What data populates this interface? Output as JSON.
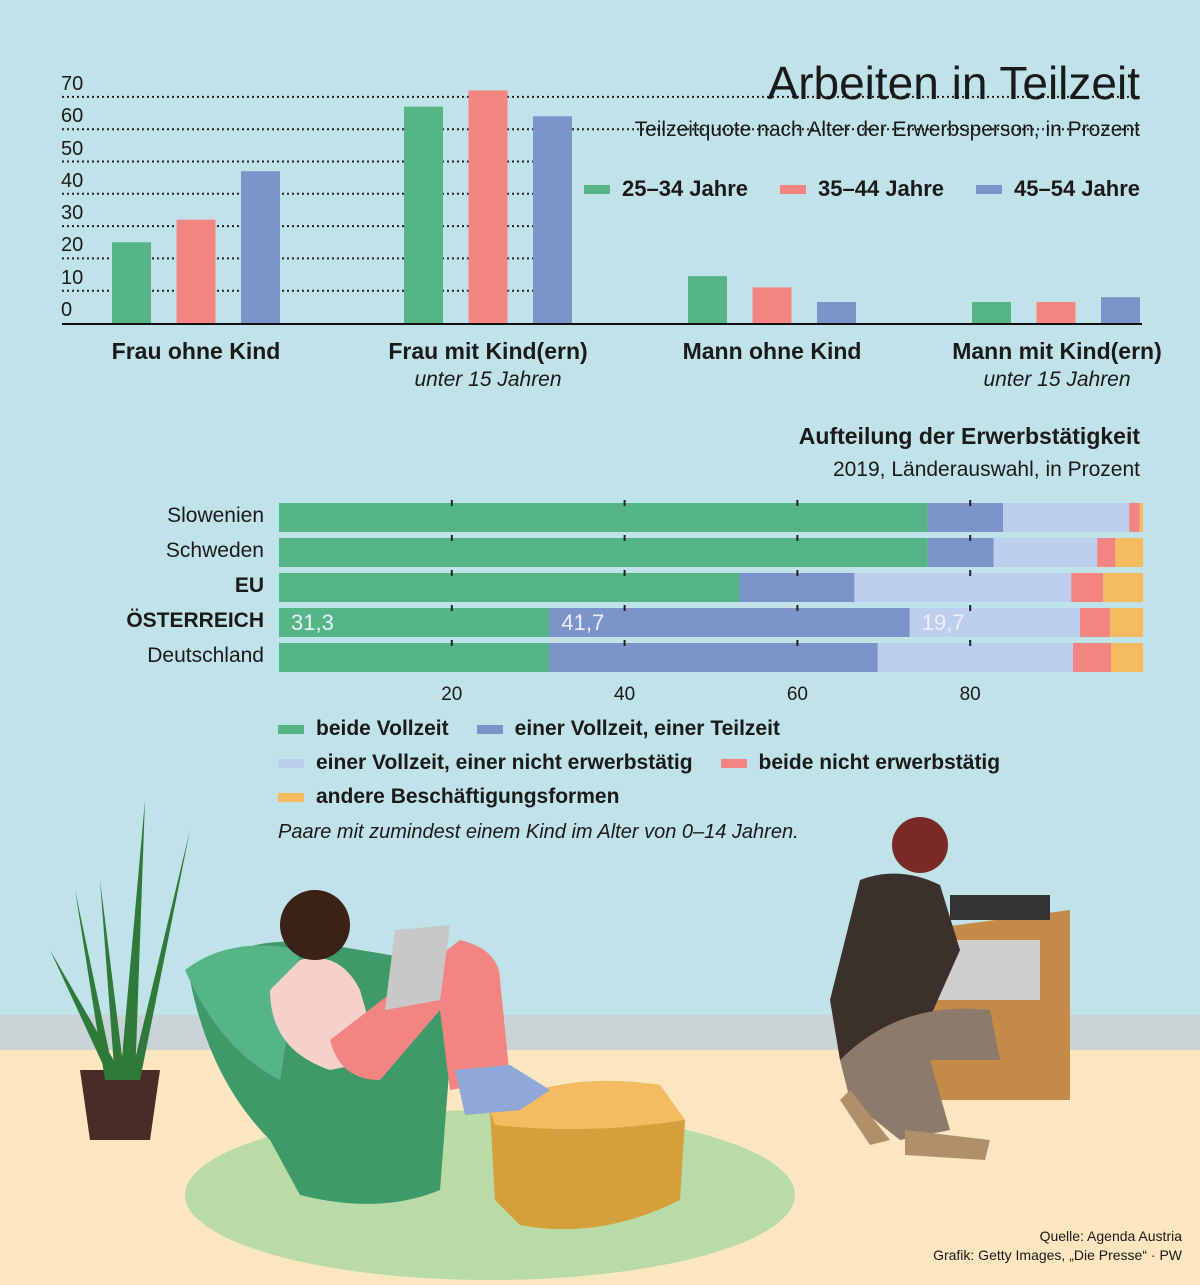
{
  "colors": {
    "green": "#55b586",
    "red": "#f28582",
    "blue": "#7b95cb",
    "lightblue": "#bccfec",
    "orange": "#f4bb60",
    "background": "#bfe3e8"
  },
  "chart_data": [
    {
      "type": "bar",
      "title": "Arbeiten in Teilzeit",
      "subtitle": "Teilzeitquote nach Alter der Erwerbsperson, in Prozent",
      "categories": [
        "Frau ohne Kind",
        "Frau mit Kind(ern)",
        "Mann ohne Kind",
        "Mann mit Kind(ern)"
      ],
      "category_sublabels": [
        "",
        "unter 15 Jahren",
        "",
        "unter 15 Jahren"
      ],
      "yticks": [
        "0",
        "10",
        "20",
        "30",
        "40",
        "50",
        "60",
        "70"
      ],
      "ylim": [
        0,
        70
      ],
      "grid": true,
      "legend_placement": "top-right",
      "series": [
        {
          "name": "25–34 Jahre",
          "color": "#55b586",
          "values": [
            25,
            67,
            14.5,
            6.5
          ]
        },
        {
          "name": "35–44 Jahre",
          "color": "#f28582",
          "values": [
            32,
            72,
            11,
            6.5
          ]
        },
        {
          "name": "45–54 Jahre",
          "color": "#7b95cb",
          "values": [
            47,
            64,
            6.5,
            8
          ]
        }
      ]
    },
    {
      "type": "bar",
      "orientation": "horizontal",
      "stacked": true,
      "title": "Aufteilung der Erwerbstätigkeit",
      "subtitle": "2019, Länderauswahl, in Prozent",
      "categories": [
        "Slowenien",
        "Schweden",
        "EU",
        "ÖSTERREICH",
        "Deutschland"
      ],
      "xticks": [
        "20",
        "40",
        "60",
        "80"
      ],
      "xlim": [
        0,
        100
      ],
      "legend_placement": "bottom",
      "series": [
        {
          "name": "beide Vollzeit",
          "color": "#55b586",
          "values": [
            75.1,
            75.1,
            53.3,
            31.3,
            31.3
          ]
        },
        {
          "name": "einer Vollzeit, einer Teilzeit",
          "color": "#7b95cb",
          "values": [
            8.7,
            7.6,
            13.3,
            41.7,
            38.0
          ]
        },
        {
          "name": "einer Vollzeit, einer nicht erwerbstätig",
          "color": "#bccfec",
          "values": [
            14.6,
            12.0,
            25.1,
            19.7,
            22.6
          ]
        },
        {
          "name": "beide nicht erwerbstätig",
          "color": "#f28582",
          "values": [
            1.2,
            2.1,
            3.7,
            3.5,
            4.4
          ]
        },
        {
          "name": "andere Beschäftigungsformen",
          "color": "#f4bb60",
          "values": [
            0.4,
            3.2,
            4.6,
            3.8,
            3.7
          ]
        }
      ],
      "data_labels": {
        "ÖSTERREICH": [
          "31,3",
          "41,7",
          "19,7"
        ]
      },
      "note": "Paare mit zumindest einem Kind im Alter von 0–14 Jahren."
    }
  ],
  "source": "Quelle: Agenda Austria",
  "credit": "Grafik: Getty Images, „Die Presse“ · PW"
}
